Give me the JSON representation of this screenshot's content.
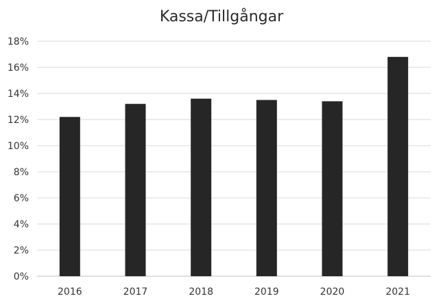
{
  "chart_data": {
    "type": "bar",
    "title": "Kassa/Tillgångar",
    "xlabel": "",
    "ylabel": "",
    "categories": [
      "2016",
      "2017",
      "2018",
      "2019",
      "2020",
      "2021"
    ],
    "values": [
      12.2,
      13.2,
      13.6,
      13.5,
      13.4,
      16.8
    ],
    "unit": "%",
    "ylim": [
      0,
      18
    ],
    "yticks": [
      "0%",
      "2%",
      "4%",
      "6%",
      "8%",
      "10%",
      "12%",
      "14%",
      "16%",
      "18%"
    ],
    "grid": true,
    "legend": "none",
    "colors": {
      "bar": "#262626",
      "grid": "#d9d9d9",
      "axis": "#bfbfbf",
      "text": "#333333"
    }
  }
}
